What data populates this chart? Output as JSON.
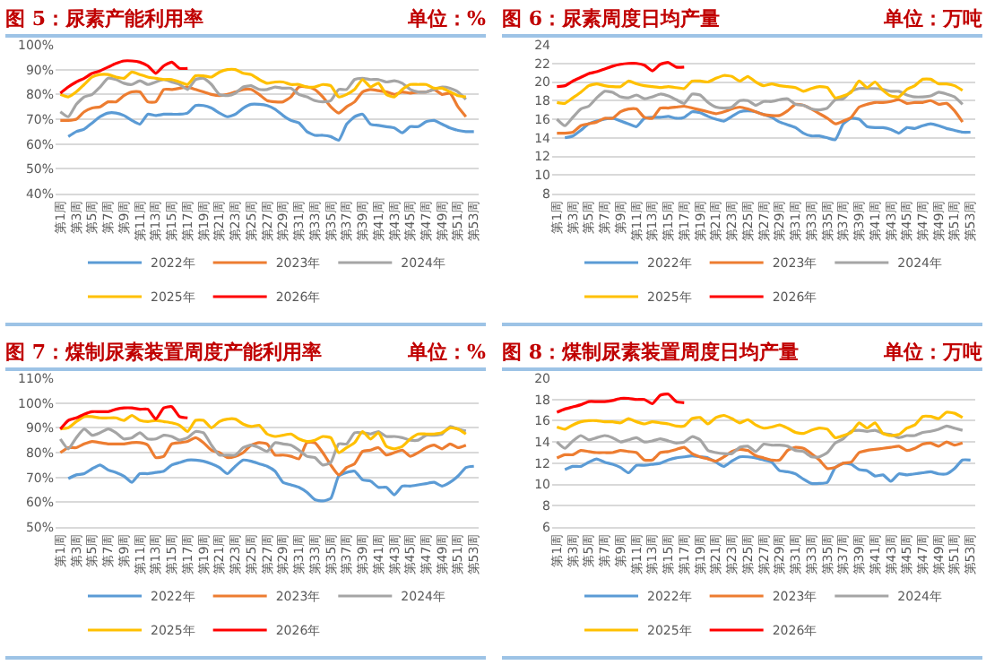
{
  "chart_data": [
    {
      "type": "line",
      "title": "图 5：尿素产能利用率",
      "subtitle": "单位：%",
      "categories": [
        "第1周",
        null,
        "第3周",
        null,
        "第5周",
        null,
        "第7周",
        null,
        "第9周",
        null,
        "第11周",
        null,
        "第13周",
        null,
        "第15周",
        null,
        "第17周",
        null,
        "第19周",
        null,
        "第21周",
        null,
        "第23周",
        null,
        "第25周",
        null,
        "第27周",
        null,
        "第29周",
        null,
        "第31周",
        null,
        "第33周",
        null,
        "第35周",
        null,
        "第37周",
        null,
        "第39周",
        null,
        "第41周",
        null,
        "第43周",
        null,
        "第45周",
        null,
        "第47周",
        null,
        "第49周",
        null,
        "第51周",
        null,
        "第53周"
      ],
      "series": [
        {
          "name": "2022年",
          "color": "#5b9bd5",
          "values": [
            null,
            63,
            65,
            66,
            68.5,
            71,
            72.5,
            72.5,
            71.5,
            69.5,
            68,
            72,
            71.5,
            72,
            72,
            72,
            72.5,
            75.5,
            75.5,
            74.5,
            72.5,
            71,
            72,
            74.5,
            76,
            76,
            75.5,
            74,
            71.5,
            69.5,
            68.5,
            65,
            63.5,
            63.5,
            63,
            61.5,
            68,
            71,
            72,
            68,
            67.5,
            67,
            66.5,
            64.5,
            67,
            67,
            69,
            69.5,
            68,
            66.5,
            65.5,
            65,
            65
          ]
        },
        {
          "name": "2023年",
          "color": "#ed7d31",
          "values": [
            69.5,
            69.5,
            70,
            73,
            74.5,
            75,
            77,
            77,
            79.5,
            81,
            81,
            77,
            77,
            82,
            82,
            82.5,
            83,
            82,
            81,
            80,
            79.5,
            80,
            81,
            82,
            82,
            80,
            77.5,
            77,
            77,
            79,
            83,
            83,
            82,
            79,
            75,
            72.5,
            75,
            77,
            81,
            82,
            81.5,
            81,
            80,
            81,
            80.5,
            81,
            81,
            82,
            80,
            80.5,
            75,
            71,
            null
          ]
        },
        {
          "name": "2024年",
          "color": "#a5a5a5",
          "values": [
            73,
            71,
            76,
            79,
            80,
            83,
            86.5,
            86,
            84.5,
            84,
            85.5,
            84,
            85,
            86,
            85,
            84,
            82,
            86,
            86.5,
            84,
            80,
            79.5,
            80.5,
            83,
            83.5,
            82,
            82,
            83,
            82.5,
            82.5,
            80,
            79,
            77.5,
            77,
            77.5,
            82,
            82,
            86,
            86.5,
            86,
            86,
            85,
            85.5,
            84.5,
            82,
            81,
            81,
            82,
            83,
            82.5,
            81,
            78,
            null
          ]
        },
        {
          "name": "2025年",
          "color": "#ffc000",
          "values": [
            80,
            79,
            81,
            84,
            87,
            88,
            88,
            87,
            86.5,
            89,
            88,
            87,
            86.5,
            86,
            86,
            85,
            84,
            87.5,
            87.5,
            87,
            89,
            90,
            90,
            88.5,
            88,
            86,
            84.5,
            85,
            85,
            84,
            84,
            83,
            83,
            84,
            83.5,
            79,
            80,
            82,
            86,
            83,
            84.5,
            80,
            79,
            82,
            84,
            84,
            84,
            82.5,
            82.5,
            81,
            79.5,
            79,
            null
          ]
        },
        {
          "name": "2026年",
          "color": "#ff0000",
          "values": [
            80.5,
            83,
            85,
            86.5,
            88.5,
            89.5,
            91,
            92.5,
            93.5,
            93.5,
            93,
            91.5,
            88.5,
            91.5,
            93,
            90.5,
            90.5,
            null,
            null,
            null,
            null,
            null,
            null,
            null,
            null,
            null,
            null,
            null,
            null,
            null,
            null,
            null,
            null,
            null,
            null,
            null,
            null,
            null,
            null,
            null,
            null,
            null,
            null,
            null,
            null,
            null,
            null,
            null,
            null,
            null,
            null,
            null,
            null
          ]
        }
      ],
      "ylim": [
        40,
        100
      ],
      "yticks": [
        {
          "value": 40,
          "label": "40%"
        },
        {
          "value": 50,
          "label": "50%"
        },
        {
          "value": 60,
          "label": "60%"
        },
        {
          "value": 70,
          "label": "70%"
        },
        {
          "value": 80,
          "label": "80%"
        },
        {
          "value": 90,
          "label": "90%"
        },
        {
          "value": 100,
          "label": "100%"
        }
      ],
      "grid": "y",
      "legend": "bottom"
    },
    {
      "type": "line",
      "title": "图 6：尿素周度日均产量",
      "subtitle": "单位：万吨",
      "categories": [
        "第1周",
        null,
        "第3周",
        null,
        "第5周",
        null,
        "第7周",
        null,
        "第9周",
        null,
        "第11周",
        null,
        "第13周",
        null,
        "第15周",
        null,
        "第17周",
        null,
        "第19周",
        null,
        "第21周",
        null,
        "第23周",
        null,
        "第25周",
        null,
        "第27周",
        null,
        "第29周",
        null,
        "第31周",
        null,
        "第33周",
        null,
        "第35周",
        null,
        "第37周",
        null,
        "第39周",
        null,
        "第41周",
        null,
        "第43周",
        null,
        "第45周",
        null,
        "第47周",
        null,
        "第49周",
        null,
        "第51周",
        null,
        "第53周"
      ],
      "series": [
        {
          "name": "2022年",
          "color": "#5b9bd5",
          "values": [
            null,
            14,
            14.2,
            14.8,
            15.5,
            15.8,
            16,
            16.1,
            15.8,
            15.5,
            15.2,
            16.1,
            16.2,
            16.2,
            16.3,
            16.1,
            16.2,
            16.8,
            16.7,
            16.3,
            16,
            15.8,
            16.3,
            16.8,
            16.9,
            16.8,
            16.5,
            16.2,
            15.7,
            15.4,
            15.1,
            14.5,
            14.2,
            14.2,
            14,
            13.8,
            15.5,
            16.1,
            16,
            15.2,
            15.1,
            15.1,
            14.9,
            14.5,
            15.1,
            15,
            15.3,
            15.5,
            15.3,
            15,
            14.8,
            14.6,
            14.6
          ]
        },
        {
          "name": "2023年",
          "color": "#ed7d31",
          "values": [
            14.5,
            14.5,
            14.6,
            15.3,
            15.5,
            15.7,
            16.1,
            16.1,
            16.8,
            17.1,
            17.1,
            16.2,
            16.1,
            17.2,
            17.2,
            17.3,
            17.4,
            17.2,
            17,
            16.8,
            16.6,
            16.8,
            17.1,
            17.3,
            17.1,
            16.8,
            16.5,
            16.4,
            16.4,
            16.9,
            17.6,
            17.5,
            17.1,
            16.6,
            16.1,
            15.5,
            15.8,
            16.2,
            17.3,
            17.6,
            17.8,
            17.8,
            17.9,
            18.1,
            17.7,
            17.8,
            17.8,
            18,
            17.6,
            17.7,
            16.9,
            15.7,
            null
          ]
        },
        {
          "name": "2024年",
          "color": "#a5a5a5",
          "values": [
            16,
            15.3,
            16.2,
            17.1,
            17.4,
            18.3,
            19,
            18.9,
            18.4,
            18.3,
            18.6,
            18.2,
            18.4,
            18.7,
            18.5,
            18.1,
            17.7,
            18.7,
            18.6,
            17.8,
            17.3,
            17.2,
            17.3,
            18,
            18,
            17.5,
            17.9,
            17.9,
            18.1,
            18.2,
            17.6,
            17.5,
            17.1,
            17,
            17.2,
            18.1,
            18.2,
            19,
            19.3,
            19.3,
            19.3,
            19.2,
            19,
            19,
            18.6,
            18.4,
            18.4,
            18.5,
            18.9,
            18.7,
            18.4,
            17.6,
            null
          ]
        },
        {
          "name": "2025年",
          "color": "#ffc000",
          "values": [
            17.8,
            17.7,
            18.3,
            18.9,
            19.6,
            19.8,
            19.6,
            19.5,
            19.5,
            20.1,
            19.8,
            19.6,
            19.5,
            19.4,
            19.5,
            19.4,
            19.3,
            20.1,
            20.1,
            20,
            20.4,
            20.7,
            20.6,
            20.1,
            20.6,
            20,
            19.6,
            19.8,
            19.6,
            19.5,
            19.4,
            19,
            19.3,
            19.5,
            19.4,
            18.3,
            18.5,
            18.9,
            20.1,
            19.4,
            20,
            19.1,
            18.5,
            18.4,
            19.2,
            19.6,
            20.3,
            20.3,
            19.8,
            19.8,
            19.6,
            19.1,
            null
          ]
        },
        {
          "name": "2026年",
          "color": "#ff0000",
          "values": [
            19.5,
            19.6,
            20.1,
            20.5,
            20.9,
            21.1,
            21.4,
            21.7,
            21.9,
            22,
            22,
            21.8,
            21.2,
            21.9,
            22.1,
            21.6,
            21.6,
            null,
            null,
            null,
            null,
            null,
            null,
            null,
            null,
            null,
            null,
            null,
            null,
            null,
            null,
            null,
            null,
            null,
            null,
            null,
            null,
            null,
            null,
            null,
            null,
            null,
            null,
            null,
            null,
            null,
            null,
            null,
            null,
            null,
            null,
            null,
            null
          ]
        }
      ],
      "ylim": [
        8,
        24
      ],
      "yticks": [
        8,
        10,
        12,
        14,
        16,
        18,
        20,
        22,
        24
      ],
      "grid": "y",
      "legend": "bottom"
    },
    {
      "type": "line",
      "title": "图 7：煤制尿素装置周度产能利用率",
      "subtitle": "单位：%",
      "categories": [
        "第1周",
        null,
        "第3周",
        null,
        "第5周",
        null,
        "第7周",
        null,
        "第9周",
        null,
        "第11周",
        null,
        "第13周",
        null,
        "第15周",
        null,
        "第17周",
        null,
        "第19周",
        null,
        "第21周",
        null,
        "第23周",
        null,
        "第25周",
        null,
        "第27周",
        null,
        "第29周",
        null,
        "第31周",
        null,
        "第33周",
        null,
        "第35周",
        null,
        "第37周",
        null,
        "第39周",
        null,
        "第41周",
        null,
        "第43周",
        null,
        "第45周",
        null,
        "第47周",
        null,
        "第49周",
        null,
        "第51周",
        null,
        "第53周"
      ],
      "series": [
        {
          "name": "2022年",
          "color": "#5b9bd5",
          "values": [
            null,
            69.5,
            71,
            71.5,
            73.5,
            75,
            73,
            72,
            70.5,
            68,
            71.5,
            71.5,
            72,
            72.5,
            75,
            76,
            77,
            77,
            76.5,
            75.5,
            74,
            71.5,
            74.5,
            77,
            76.5,
            75.5,
            74.5,
            72.5,
            68,
            67,
            66,
            64,
            61,
            60.5,
            61.5,
            70.5,
            72,
            72.5,
            69,
            68.5,
            66,
            66,
            63,
            66.5,
            66.5,
            67,
            67.5,
            68,
            66.5,
            68,
            70.5,
            74,
            74.5
          ]
        },
        {
          "name": "2023年",
          "color": "#ed7d31",
          "values": [
            80,
            82,
            82,
            83.5,
            84.5,
            84,
            83.5,
            83.5,
            83.5,
            84,
            84,
            83,
            78,
            78.5,
            83.5,
            84,
            84.5,
            86,
            84,
            81,
            80,
            78,
            78.5,
            80,
            83,
            84,
            83.5,
            79,
            79,
            78.5,
            77.5,
            84,
            84,
            80,
            75,
            71,
            74,
            75.5,
            80.5,
            81,
            82,
            79,
            80,
            81,
            78.5,
            80,
            82,
            83,
            81.5,
            83.5,
            82,
            83,
            null
          ]
        },
        {
          "name": "2024年",
          "color": "#a5a5a5",
          "values": [
            85.5,
            81.5,
            86,
            89.5,
            87,
            88,
            89.5,
            88,
            85.5,
            86,
            88,
            85.5,
            85.5,
            87,
            86.5,
            85,
            86,
            88.5,
            88,
            83,
            79,
            79,
            79,
            82,
            83,
            82,
            80.5,
            84,
            83.5,
            83,
            81,
            78.5,
            78,
            75,
            76,
            83.5,
            83.5,
            88,
            88,
            87.5,
            88.5,
            86.5,
            86.5,
            86,
            85,
            85,
            87,
            87,
            87.5,
            90.5,
            89.5,
            88.7,
            null
          ]
        },
        {
          "name": "2025年",
          "color": "#ffc000",
          "values": [
            89.5,
            90,
            92.5,
            94.5,
            94.5,
            94,
            94,
            94,
            93,
            95,
            93,
            92.5,
            93,
            92.5,
            92,
            91,
            88.5,
            93,
            93,
            90,
            92.5,
            93.5,
            93.5,
            91.5,
            90.5,
            91,
            87.5,
            86.5,
            87,
            87.5,
            85.5,
            84.5,
            85,
            86.5,
            86,
            80,
            82,
            84,
            88.5,
            85.5,
            88,
            82.5,
            81.5,
            82.5,
            85.5,
            87.5,
            87.5,
            87.5,
            88,
            90,
            89.5,
            87.5,
            null
          ]
        },
        {
          "name": "2026年",
          "color": "#ff0000",
          "values": [
            89.5,
            93,
            94,
            95.5,
            96.5,
            96.5,
            96.5,
            97.5,
            98,
            98,
            97.5,
            97.5,
            93.5,
            98,
            98.5,
            94.5,
            94,
            null,
            null,
            null,
            null,
            null,
            null,
            null,
            null,
            null,
            null,
            null,
            null,
            null,
            null,
            null,
            null,
            null,
            null,
            null,
            null,
            null,
            null,
            null,
            null,
            null,
            null,
            null,
            null,
            null,
            null,
            null,
            null,
            null,
            null,
            null,
            null
          ]
        }
      ],
      "ylim": [
        50,
        110
      ],
      "yticks": [
        {
          "value": 50,
          "label": "50%"
        },
        {
          "value": 60,
          "label": "60%"
        },
        {
          "value": 70,
          "label": "70%"
        },
        {
          "value": 80,
          "label": "80%"
        },
        {
          "value": 90,
          "label": "90%"
        },
        {
          "value": 100,
          "label": "100%"
        },
        {
          "value": 110,
          "label": "110%"
        }
      ],
      "grid": "y",
      "legend": "bottom"
    },
    {
      "type": "line",
      "title": "图 8：煤制尿素装置周度日均产量",
      "subtitle": "单位：万吨",
      "categories": [
        "第1周",
        null,
        "第3周",
        null,
        "第5周",
        null,
        "第7周",
        null,
        "第9周",
        null,
        "第11周",
        null,
        "第13周",
        null,
        "第15周",
        null,
        "第17周",
        null,
        "第19周",
        null,
        "第21周",
        null,
        "第23周",
        null,
        "第25周",
        null,
        "第27周",
        null,
        "第29周",
        null,
        "第31周",
        null,
        "第33周",
        null,
        "第35周",
        null,
        "第37周",
        null,
        "第39周",
        null,
        "第41周",
        null,
        "第43周",
        null,
        "第45周",
        null,
        "第47周",
        null,
        "第49周",
        null,
        "第51周",
        null,
        "第53周"
      ],
      "series": [
        {
          "name": "2022年",
          "color": "#5b9bd5",
          "values": [
            null,
            11.4,
            11.7,
            11.7,
            12.1,
            12.4,
            12.1,
            11.9,
            11.6,
            11.1,
            11.8,
            11.8,
            11.9,
            12,
            12.3,
            12.5,
            12.6,
            12.7,
            12.6,
            12.5,
            12.1,
            11.7,
            12.2,
            12.6,
            12.6,
            12.5,
            12.3,
            12.1,
            11.3,
            11.2,
            11,
            10.5,
            10.1,
            10.1,
            10.2,
            11.6,
            12,
            11.9,
            11.4,
            11.3,
            10.8,
            10.9,
            10.3,
            11,
            10.9,
            11,
            11.1,
            11.2,
            11,
            11,
            11.5,
            12.3,
            12.3
          ]
        },
        {
          "name": "2023年",
          "color": "#ed7d31",
          "values": [
            12.5,
            12.8,
            12.8,
            13.2,
            13.1,
            13,
            13,
            13,
            13.2,
            13.1,
            13,
            12.3,
            12.3,
            13,
            13.1,
            13.3,
            13.5,
            12.9,
            12.6,
            12.4,
            12.2,
            12.6,
            13.1,
            13.3,
            13.2,
            12.7,
            12.5,
            12.3,
            12.3,
            13.2,
            13.5,
            13.4,
            12.9,
            12.3,
            11.5,
            11.6,
            12,
            12.1,
            13,
            13.2,
            13.3,
            13.4,
            13.5,
            13.6,
            13.2,
            13.4,
            13.8,
            13.9,
            13.6,
            14,
            13.7,
            13.9,
            null
          ]
        },
        {
          "name": "2024年",
          "color": "#a5a5a5",
          "values": [
            14,
            13.4,
            14.1,
            14.6,
            14.2,
            14.4,
            14.6,
            14.4,
            14,
            14.2,
            14.4,
            14,
            14.1,
            14.3,
            14.1,
            13.9,
            14,
            14.5,
            14.2,
            13.2,
            13,
            12.9,
            12.9,
            13.5,
            13.6,
            13.1,
            13.8,
            13.7,
            13.7,
            13.6,
            13.2,
            13.1,
            12.6,
            12.6,
            13,
            13.9,
            14.3,
            15,
            15.1,
            15,
            15.1,
            14.8,
            14.7,
            14.4,
            14.6,
            14.6,
            14.9,
            15,
            15.2,
            15.5,
            15.3,
            15.1,
            null
          ]
        },
        {
          "name": "2025年",
          "color": "#ffc000",
          "values": [
            15.4,
            15.2,
            15.6,
            15.9,
            16,
            16,
            15.9,
            15.9,
            15.8,
            16.2,
            15.9,
            15.7,
            15.9,
            15.8,
            15.7,
            15.5,
            15.5,
            16.2,
            16.3,
            15.7,
            16.3,
            16.5,
            16.2,
            15.8,
            16.1,
            15.6,
            15.3,
            15.4,
            15.6,
            15.3,
            14.9,
            14.8,
            15.1,
            15.3,
            15.2,
            14.4,
            14.6,
            14.9,
            15.8,
            15.3,
            15.8,
            14.8,
            14.6,
            14.7,
            15.3,
            15.6,
            16.4,
            16.4,
            16.2,
            16.8,
            16.7,
            16.3,
            null
          ]
        },
        {
          "name": "2026年",
          "color": "#ff0000",
          "values": [
            16.8,
            17.1,
            17.3,
            17.5,
            17.8,
            17.8,
            17.8,
            17.9,
            18.1,
            18.1,
            18,
            18,
            17.6,
            18.4,
            18.5,
            17.8,
            17.7,
            null,
            null,
            null,
            null,
            null,
            null,
            null,
            null,
            null,
            null,
            null,
            null,
            null,
            null,
            null,
            null,
            null,
            null,
            null,
            null,
            null,
            null,
            null,
            null,
            null,
            null,
            null,
            null,
            null,
            null,
            null,
            null,
            null,
            null,
            null,
            null
          ]
        }
      ],
      "ylim": [
        6,
        20
      ],
      "yticks": [
        6,
        8,
        10,
        12,
        14,
        16,
        18,
        20
      ],
      "grid": "y",
      "legend": "bottom"
    }
  ]
}
